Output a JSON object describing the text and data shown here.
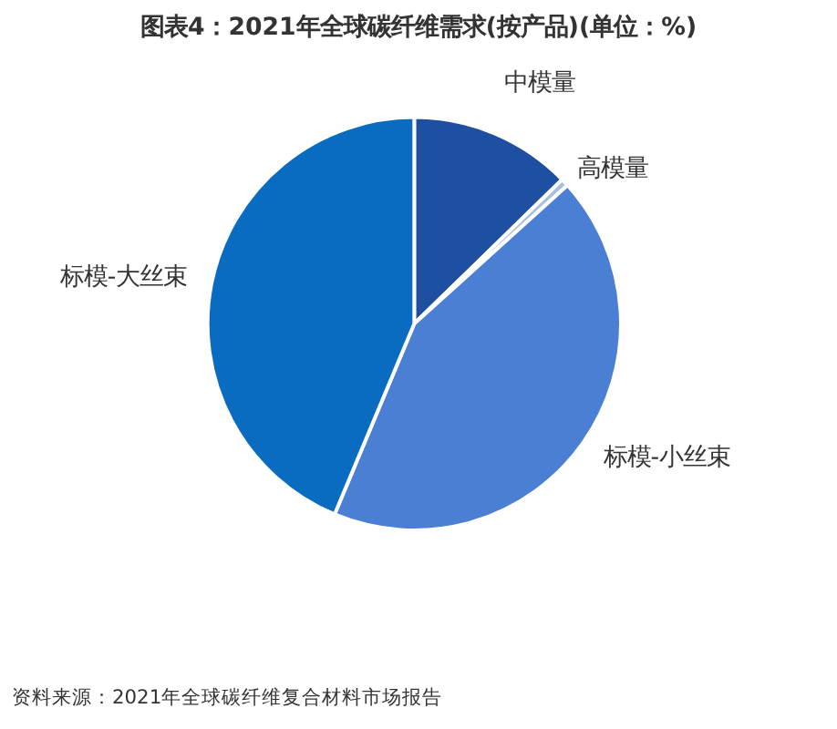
{
  "chart_data": {
    "type": "pie",
    "title": "图表4：2021年全球碳纤维需求(按产品)(单位：%)",
    "categories": [
      "中模量",
      "高模量",
      "标模-小丝束",
      "标模-大丝束"
    ],
    "values": [
      12.7,
      0.6,
      43,
      43.7
    ],
    "colors": [
      "#1f4fa0",
      "#a9bfdc",
      "#4a7fd4",
      "#0a6cc0"
    ],
    "annotations": [
      "资料来源：2021年全球碳纤维复合材料市场报告"
    ]
  }
}
